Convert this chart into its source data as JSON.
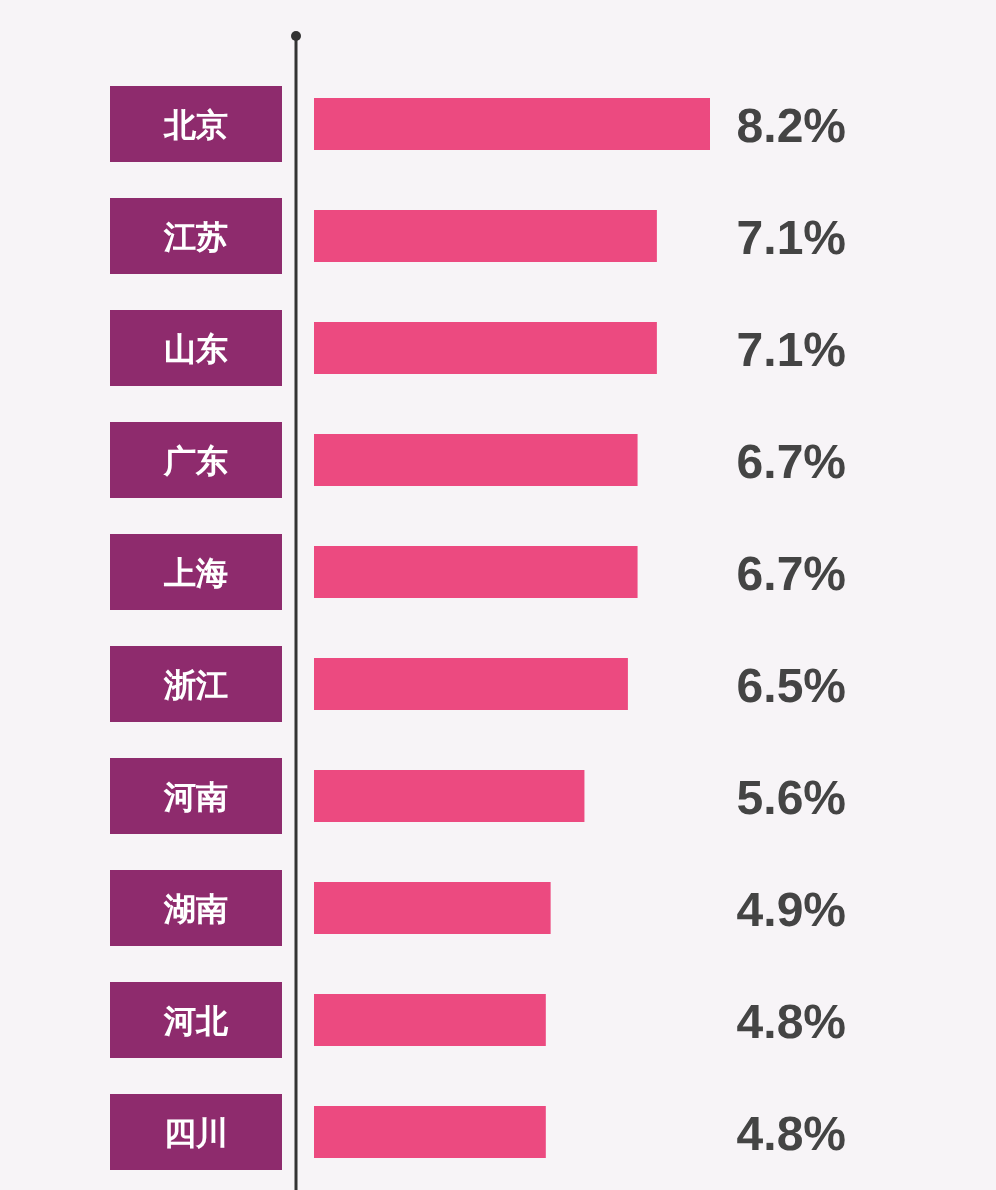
{
  "chart_data": {
    "type": "bar",
    "orientation": "horizontal",
    "categories": [
      "北京",
      "江苏",
      "山东",
      "广东",
      "上海",
      "浙江",
      "河南",
      "湖南",
      "河北",
      "四川"
    ],
    "values": [
      8.2,
      7.1,
      7.1,
      6.7,
      6.7,
      6.5,
      5.6,
      4.9,
      4.8,
      4.8
    ],
    "value_labels": [
      "8.2%",
      "7.1%",
      "7.1%",
      "6.7%",
      "6.7%",
      "6.5%",
      "5.6%",
      "4.9%",
      "4.8%",
      "4.8%"
    ],
    "color": "#ec4a80"
  }
}
